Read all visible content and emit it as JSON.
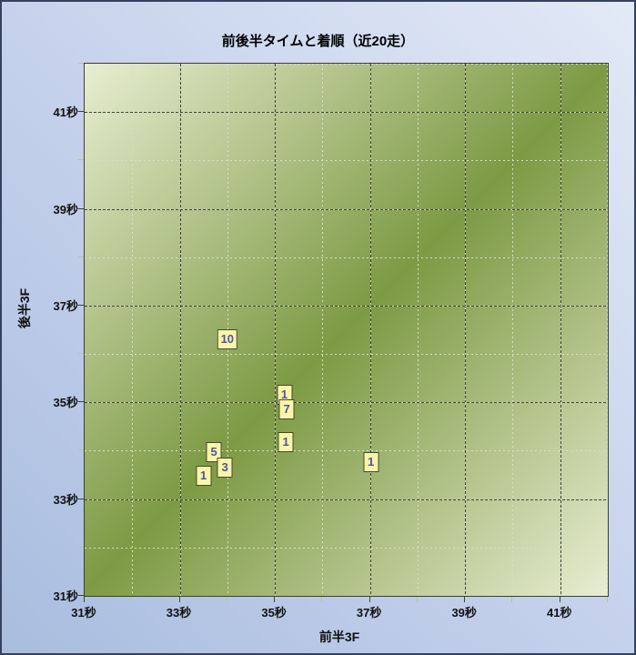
{
  "title": "前後半タイムと着順（近20走）",
  "chart_data": {
    "type": "scatter",
    "title": "前後半タイムと着順（近20走）",
    "xlabel": "前半3F",
    "ylabel": "後半3F",
    "xlim": [
      31,
      42
    ],
    "ylim": [
      31,
      42
    ],
    "unit": "秒",
    "grid": "major dashed dark at odd seconds, minor dotted light at even seconds",
    "legend": "none",
    "x_ticks": [
      {
        "v": 31,
        "label": "31秒"
      },
      {
        "v": 33,
        "label": "33秒"
      },
      {
        "v": 35,
        "label": "35秒"
      },
      {
        "v": 37,
        "label": "37秒"
      },
      {
        "v": 39,
        "label": "39秒"
      },
      {
        "v": 41,
        "label": "41秒"
      }
    ],
    "y_ticks": [
      {
        "v": 41,
        "label": "41秒"
      },
      {
        "v": 39,
        "label": "39秒"
      },
      {
        "v": 37,
        "label": "37秒"
      },
      {
        "v": 35,
        "label": "35秒"
      },
      {
        "v": 33,
        "label": "33秒"
      },
      {
        "v": 31,
        "label": "31秒"
      }
    ],
    "minor_ticks": [
      32,
      34,
      36,
      38,
      40,
      42
    ],
    "points": [
      {
        "front": 34.0,
        "back": 36.3,
        "rank": "10"
      },
      {
        "front": 35.2,
        "back": 35.15,
        "rank": "1"
      },
      {
        "front": 35.25,
        "back": 34.85,
        "rank": "7"
      },
      {
        "front": 35.23,
        "back": 34.17,
        "rank": "1"
      },
      {
        "front": 33.72,
        "back": 33.98,
        "rank": "5"
      },
      {
        "front": 33.95,
        "back": 33.66,
        "rank": "3"
      },
      {
        "front": 33.5,
        "back": 33.49,
        "rank": "1"
      },
      {
        "front": 37.02,
        "back": 33.77,
        "rank": "1"
      }
    ]
  },
  "colors": {
    "frame": "#35425f",
    "page_bg_dark": "#a9bddf",
    "page_bg_light": "#e2e9f6",
    "plot_dark": "#7d9a44",
    "plot_light": "#e8edd2",
    "grid_major": "#3f4433",
    "grid_minor": "#d9dec8",
    "marker_bg": "#faf6a2",
    "marker_border": "#45472f",
    "marker_text": "#4d51ae",
    "text": "#111111"
  }
}
